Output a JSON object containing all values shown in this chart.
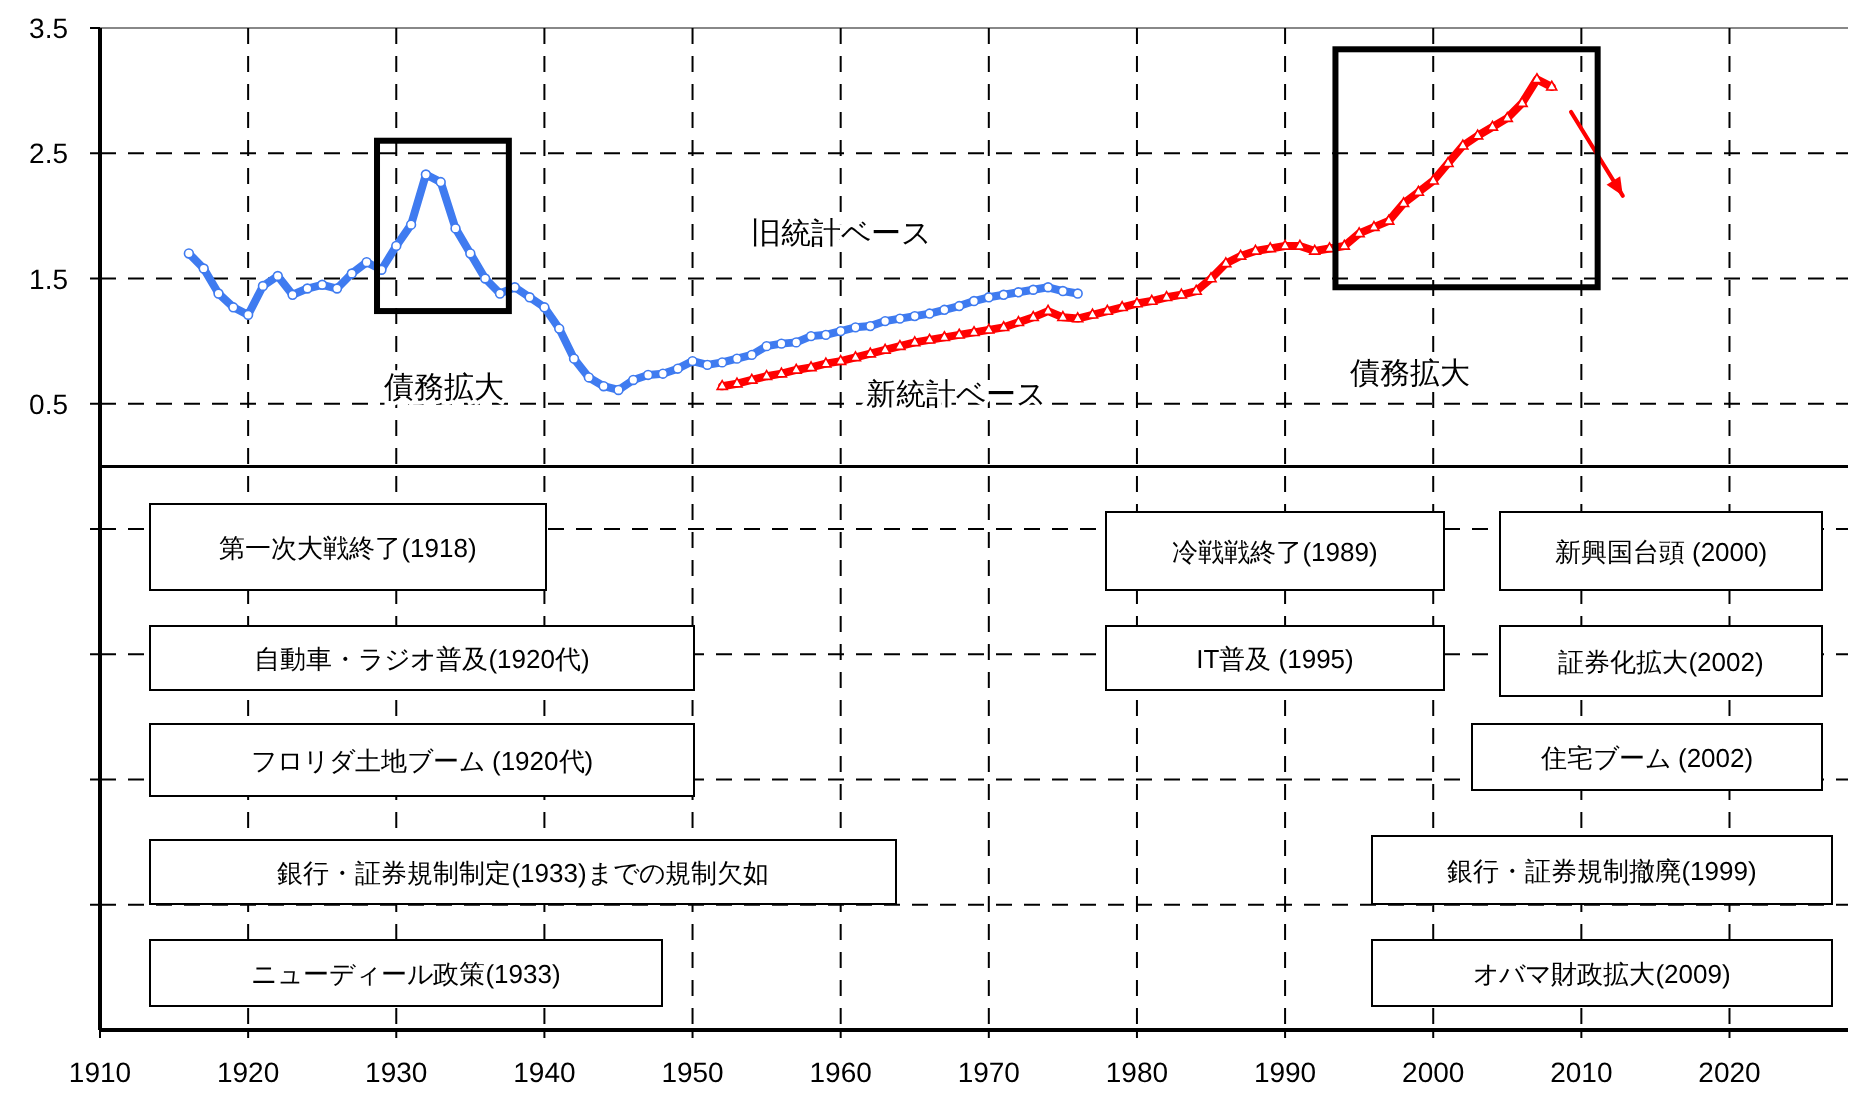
{
  "chart_data": {
    "type": "line",
    "xlim": [
      1910,
      2028
    ],
    "ylim": [
      -4.5,
      3.5
    ],
    "xticks": [
      1910,
      1920,
      1930,
      1940,
      1950,
      1960,
      1970,
      1980,
      1990,
      2000,
      2010,
      2020
    ],
    "yticks": [
      {
        "value": -3.5,
        "label": null
      },
      {
        "value": -2.5,
        "label": null
      },
      {
        "value": -1.5,
        "label": null
      },
      {
        "value": -0.5,
        "label": null
      },
      0.5,
      1.5,
      2.5,
      3.5
    ],
    "grid": true,
    "ref_lines": [
      {
        "axis": "y",
        "value": 0,
        "color": "#000000",
        "line_style": "solid"
      }
    ],
    "series": [
      {
        "name": "旧統計ベース",
        "color": "#3f7bf0",
        "marker": "circle",
        "line_style": "solid",
        "x": [
          1916,
          1917,
          1918,
          1919,
          1920,
          1921,
          1922,
          1923,
          1924,
          1925,
          1926,
          1927,
          1928,
          1929,
          1930,
          1931,
          1932,
          1933,
          1934,
          1935,
          1936,
          1937,
          1938,
          1939,
          1940,
          1941,
          1942,
          1943,
          1944,
          1945,
          1946,
          1947,
          1948,
          1949,
          1950,
          1951,
          1952,
          1953,
          1954,
          1955,
          1956,
          1957,
          1958,
          1959,
          1960,
          1961,
          1962,
          1963,
          1964,
          1965,
          1966,
          1967,
          1968,
          1969,
          1970,
          1971,
          1972,
          1973,
          1974,
          1975,
          1976
        ],
        "values": [
          1.7,
          1.58,
          1.38,
          1.27,
          1.21,
          1.44,
          1.52,
          1.37,
          1.42,
          1.45,
          1.42,
          1.54,
          1.63,
          1.57,
          1.76,
          1.93,
          2.33,
          2.27,
          1.9,
          1.7,
          1.5,
          1.38,
          1.43,
          1.35,
          1.27,
          1.1,
          0.86,
          0.71,
          0.64,
          0.61,
          0.69,
          0.73,
          0.74,
          0.78,
          0.84,
          0.81,
          0.83,
          0.86,
          0.89,
          0.96,
          0.98,
          0.99,
          1.04,
          1.05,
          1.08,
          1.11,
          1.12,
          1.16,
          1.18,
          1.2,
          1.22,
          1.25,
          1.28,
          1.32,
          1.35,
          1.37,
          1.39,
          1.41,
          1.43,
          1.4,
          1.38
        ]
      },
      {
        "name": "新統計ベース",
        "color": "#ff0000",
        "marker": "triangle",
        "line_style": "solid",
        "x": [
          1952,
          1953,
          1954,
          1955,
          1956,
          1957,
          1958,
          1959,
          1960,
          1961,
          1962,
          1963,
          1964,
          1965,
          1966,
          1967,
          1968,
          1969,
          1970,
          1971,
          1972,
          1973,
          1974,
          1975,
          1976,
          1977,
          1978,
          1979,
          1980,
          1981,
          1982,
          1983,
          1984,
          1985,
          1986,
          1987,
          1988,
          1989,
          1990,
          1991,
          1992,
          1993,
          1994,
          1995,
          1996,
          1997,
          1998,
          1999,
          2000,
          2001,
          2002,
          2003,
          2004,
          2005,
          2006,
          2007,
          2008
        ],
        "values": [
          0.64,
          0.66,
          0.69,
          0.72,
          0.74,
          0.77,
          0.79,
          0.82,
          0.84,
          0.87,
          0.9,
          0.93,
          0.96,
          0.99,
          1.01,
          1.03,
          1.05,
          1.07,
          1.09,
          1.11,
          1.15,
          1.19,
          1.24,
          1.19,
          1.18,
          1.21,
          1.24,
          1.27,
          1.3,
          1.32,
          1.35,
          1.37,
          1.4,
          1.5,
          1.62,
          1.68,
          1.72,
          1.74,
          1.76,
          1.76,
          1.72,
          1.74,
          1.76,
          1.86,
          1.91,
          1.96,
          2.1,
          2.19,
          2.28,
          2.42,
          2.56,
          2.64,
          2.71,
          2.78,
          2.9,
          3.09,
          3.03
        ]
      },
      {
        "color": "#ff0000",
        "marker": "none",
        "line_style": "solid",
        "x": [
          2009.3,
          2012.8
        ],
        "values": [
          2.83,
          2.16
        ]
      }
    ],
    "annotations": [
      "債務拡大",
      "債務拡大",
      "第一次大戦終了(1918)",
      "自動車・ラジオ普及(1920代)",
      "フロリダ土地ブーム (1920代)",
      "銀行・証券規制制定(1933)までの規制欠如",
      "ニューディール政策(1933)",
      "冷戦戦終了(1989)",
      "IT普及 (1995)",
      "新興国台頭 (2000)",
      "証券化拡大(2002)",
      "住宅ブーム (2002)",
      "銀行・証券規制撤廃(1999)",
      "オバマ財政拡大(2009)"
    ]
  }
}
